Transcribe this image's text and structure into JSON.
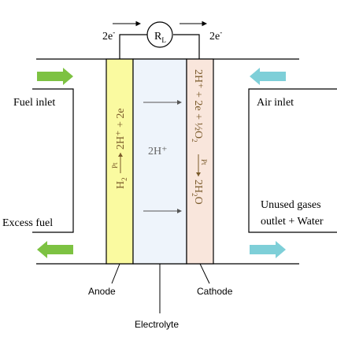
{
  "circuit": {
    "electrons_left": "2e",
    "electrons_right": "2e",
    "electron_superscript": "-",
    "load_symbol": "R",
    "load_subscript": "L"
  },
  "anode_layer": {
    "fill": "#fafaa0",
    "reaction_reactant": "H",
    "reactant_subscript": "2",
    "catalyst": "Pt",
    "reaction_products": "2H⁺ + 2e"
  },
  "electrolyte_layer": {
    "fill": "#eef4fb",
    "ion_label": "2H⁺"
  },
  "cathode_layer": {
    "fill": "#f9e6dc",
    "reaction_line1": "2H⁺ + 2e + ½O",
    "o2_subscript": "2",
    "catalyst": "Pt",
    "product_main": "2H",
    "product_subscript": "2",
    "product_tail": "O"
  },
  "flows": {
    "fuel_inlet": "Fuel inlet",
    "excess_fuel": "Excess fuel",
    "air_inlet": "Air inlet",
    "outlet_line1": "Unused gases",
    "outlet_line2": "outlet + Water",
    "fuel_arrow_color": "#7dc242",
    "air_arrow_color": "#7ecfd8"
  },
  "labels": {
    "anode": "Anode",
    "electrolyte": "Electrolyte",
    "cathode": "Cathode"
  }
}
